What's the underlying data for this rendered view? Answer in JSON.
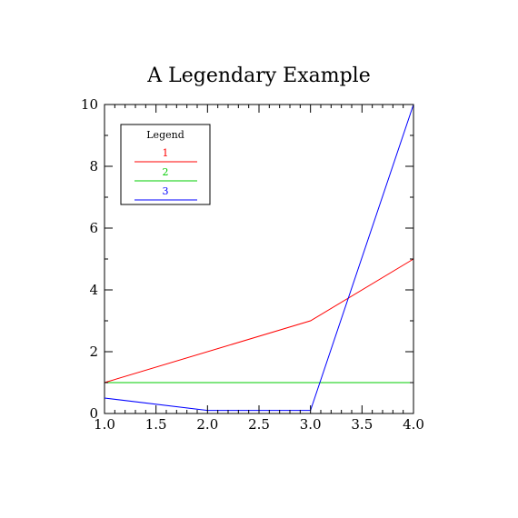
{
  "chart_data": {
    "type": "line",
    "title": "A Legendary Example",
    "xlabel": "",
    "ylabel": "",
    "xlim": [
      1.0,
      4.0
    ],
    "ylim": [
      0,
      10
    ],
    "x_ticks": [
      "1.0",
      "1.5",
      "2.0",
      "2.5",
      "3.0",
      "3.5",
      "4.0"
    ],
    "y_ticks": [
      "0",
      "2",
      "4",
      "6",
      "8",
      "10"
    ],
    "grid": false,
    "legend": {
      "title": "Legend",
      "placement": "top-left"
    },
    "series": [
      {
        "name": "1",
        "color": "#ff0000",
        "x": [
          1.0,
          3.0,
          4.0
        ],
        "y": [
          1.0,
          3.0,
          5.0
        ]
      },
      {
        "name": "2",
        "color": "#00cc00",
        "x": [
          1.0,
          4.0
        ],
        "y": [
          1.0,
          1.0
        ]
      },
      {
        "name": "3",
        "color": "#0000ff",
        "x": [
          1.0,
          2.0,
          3.0,
          4.0
        ],
        "y": [
          0.5,
          0.1,
          0.1,
          10.0
        ]
      }
    ]
  }
}
